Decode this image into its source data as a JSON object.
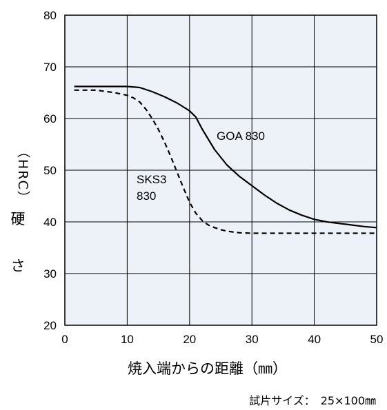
{
  "chart_data": {
    "type": "line",
    "xlabel": "焼入端からの距離（㎜）",
    "ylabel": "硬　さ",
    "ylabel_unit": "（HRC）",
    "note": "試片サイズ：　25×100㎜",
    "xlim": [
      0,
      50
    ],
    "ylim": [
      20,
      80
    ],
    "x_ticks": [
      "0",
      "10",
      "20",
      "30",
      "40",
      "50"
    ],
    "y_ticks": [
      "20",
      "30",
      "40",
      "50",
      "60",
      "70",
      "80"
    ],
    "grid": true,
    "background_color": "#edf2f8",
    "series": [
      {
        "label": [
          "GOA 830"
        ],
        "style": "solid",
        "x": [
          1.5,
          5,
          10,
          12,
          14,
          16,
          18,
          20,
          21,
          22,
          24,
          26,
          28,
          30,
          32,
          34,
          36,
          38,
          40,
          42,
          44,
          46,
          48,
          50
        ],
        "y": [
          66.2,
          66.2,
          66.2,
          66.0,
          65.2,
          64.2,
          63.0,
          61.5,
          60.3,
          58.0,
          54.0,
          51.0,
          48.8,
          47.0,
          45.2,
          43.6,
          42.3,
          41.3,
          40.5,
          40.0,
          39.7,
          39.4,
          39.1,
          38.9
        ]
      },
      {
        "label": [
          "SKS3",
          "830"
        ],
        "style": "dashed",
        "x": [
          1.5,
          5,
          8,
          10,
          11,
          12,
          13,
          14,
          15,
          16,
          17,
          18,
          19,
          20,
          21,
          22,
          23,
          24,
          25,
          26,
          28,
          30,
          35,
          40,
          45,
          50
        ],
        "y": [
          65.5,
          65.5,
          65.0,
          64.5,
          64.0,
          63.2,
          61.8,
          60.0,
          57.9,
          55.4,
          52.6,
          49.6,
          46.6,
          43.8,
          41.7,
          40.3,
          39.4,
          38.9,
          38.5,
          38.2,
          37.9,
          37.8,
          37.8,
          37.8,
          37.8,
          37.8
        ]
      }
    ]
  }
}
